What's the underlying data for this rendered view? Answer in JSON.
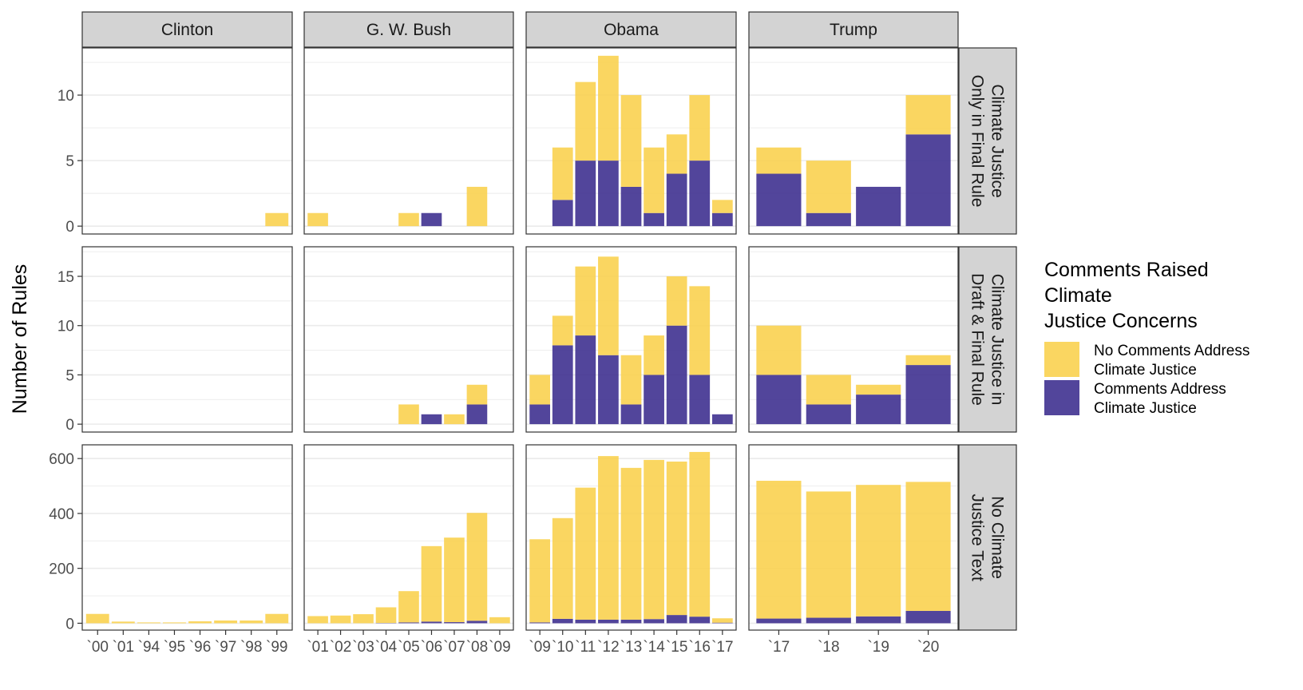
{
  "chart_data": {
    "type": "bar",
    "stacked": true,
    "ylabel": "Number of Rules",
    "xlabel": "",
    "colors": {
      "no_comments": "#F9D150",
      "comments": "#3F3190",
      "strip": "#D3D3D3",
      "grid": "#EBEBEB"
    },
    "columns": [
      "Clinton",
      "G. W. Bush",
      "Obama",
      "Trump"
    ],
    "rows": [
      "Climate Justice Only in Final Rule",
      "Climate Justice in Draft & Final Rule",
      "No Climate Justice Text"
    ],
    "row_strip_lines": [
      [
        "Climate Justice",
        "Only in Final Rule"
      ],
      [
        "Climate Justice in",
        "Draft & Final Rule"
      ],
      [
        "No Climate",
        "Justice Text"
      ]
    ],
    "categories": {
      "Clinton": [
        "`00",
        "`01",
        "`94",
        "`95",
        "`96",
        "`97",
        "`98",
        "`99"
      ],
      "G. W. Bush": [
        "`01",
        "`02",
        "`03",
        "`04",
        "`05",
        "`06",
        "`07",
        "`08",
        "`09"
      ],
      "Obama": [
        "`09",
        "`10",
        "`11",
        "`12",
        "`13",
        "`14",
        "`15",
        "`16",
        "`17"
      ],
      "Trump": [
        "`17",
        "`18",
        "`19",
        "`20"
      ]
    },
    "y_axes": [
      {
        "ticks": [
          0,
          5,
          10
        ],
        "ylim": [
          -0.6,
          13.6
        ]
      },
      {
        "ticks": [
          0,
          5,
          10,
          15
        ],
        "ylim": [
          -0.8,
          18.0
        ]
      },
      {
        "ticks": [
          0,
          200,
          400,
          600
        ],
        "ylim": [
          -25,
          650
        ]
      }
    ],
    "series": [
      {
        "name": "No Comments Address Climate Justice",
        "key": "no_comments"
      },
      {
        "name": "Comments Address Climate Justice",
        "key": "comments"
      }
    ],
    "panels": [
      [
        {
          "no_comments": [
            0,
            0,
            0,
            0,
            0,
            0,
            0,
            1
          ],
          "comments": [
            0,
            0,
            0,
            0,
            0,
            0,
            0,
            0
          ]
        },
        {
          "no_comments": [
            1,
            0,
            0,
            0,
            1,
            0,
            0,
            3,
            0
          ],
          "comments": [
            0,
            0,
            0,
            0,
            0,
            1,
            0,
            0,
            0
          ]
        },
        {
          "no_comments": [
            0,
            4,
            6,
            8,
            7,
            5,
            3,
            5,
            1
          ],
          "comments": [
            0,
            2,
            5,
            5,
            3,
            1,
            4,
            5,
            1
          ]
        },
        {
          "no_comments": [
            2,
            4,
            0,
            3
          ],
          "comments": [
            4,
            1,
            3,
            7
          ]
        }
      ],
      [
        {
          "no_comments": [
            0,
            0,
            0,
            0,
            0,
            0,
            0,
            0
          ],
          "comments": [
            0,
            0,
            0,
            0,
            0,
            0,
            0,
            0
          ]
        },
        {
          "no_comments": [
            0,
            0,
            0,
            0,
            2,
            0,
            1,
            2,
            0
          ],
          "comments": [
            0,
            0,
            0,
            0,
            0,
            1,
            0,
            2,
            0
          ]
        },
        {
          "no_comments": [
            3,
            3,
            7,
            10,
            5,
            4,
            5,
            9,
            0
          ],
          "comments": [
            2,
            8,
            9,
            7,
            2,
            5,
            10,
            5,
            1
          ]
        },
        {
          "no_comments": [
            5,
            3,
            1,
            1
          ],
          "comments": [
            5,
            2,
            3,
            6
          ]
        }
      ],
      [
        {
          "no_comments": [
            34,
            6,
            3,
            3,
            7,
            10,
            10,
            34
          ],
          "comments": [
            0,
            0,
            0,
            0,
            0,
            0,
            0,
            0
          ]
        },
        {
          "no_comments": [
            26,
            28,
            33,
            57,
            114,
            275,
            308,
            393,
            22
          ],
          "comments": [
            0,
            0,
            0,
            1,
            3,
            6,
            4,
            9,
            0
          ]
        },
        {
          "no_comments": [
            303,
            367,
            481,
            596,
            553,
            580,
            559,
            600,
            16
          ],
          "comments": [
            3,
            16,
            13,
            13,
            13,
            15,
            30,
            24,
            2
          ]
        },
        {
          "no_comments": [
            502,
            460,
            479,
            470
          ],
          "comments": [
            17,
            20,
            25,
            45
          ]
        }
      ]
    ],
    "legend": {
      "title_lines": [
        "Comments Raised",
        "Climate",
        "Justice Concerns"
      ],
      "items": [
        {
          "key": "no_comments",
          "lines": [
            "No Comments Address",
            "Climate Justice"
          ]
        },
        {
          "key": "comments",
          "lines": [
            "Comments Address",
            "Climate Justice"
          ]
        }
      ]
    }
  }
}
